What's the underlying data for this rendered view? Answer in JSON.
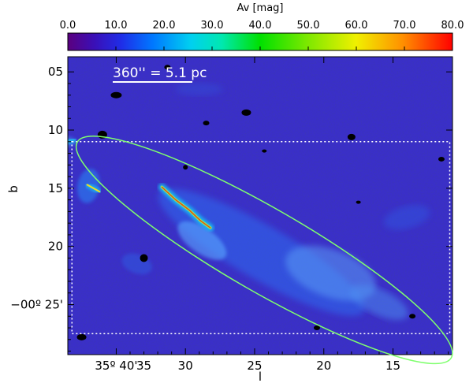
{
  "chart_data": {
    "type": "heatmap",
    "title": "",
    "colorbar": {
      "label": "Av [mag]",
      "ticks": [
        0,
        10,
        20,
        30,
        40,
        50,
        60,
        70,
        80
      ],
      "tick_labels": [
        "0.0",
        "10.0",
        "20.0",
        "30.0",
        "40.0",
        "50.0",
        "60.0",
        "70.0",
        "80.0"
      ],
      "range": [
        0,
        80
      ],
      "colormap": "rainbow"
    },
    "xlabel": "l",
    "ylabel": "b",
    "x_axis": {
      "range": [
        38.5,
        10.7
      ],
      "reversed": true,
      "ticks": [
        {
          "value": 35,
          "label": "35º 40'"
        },
        {
          "value": 30,
          "label": "30"
        },
        {
          "value": 25,
          "label": "25"
        },
        {
          "value": 20,
          "label": "20"
        },
        {
          "value": 15,
          "label": "15"
        }
      ],
      "extra_label": {
        "value": 33,
        "label": "35"
      }
    },
    "y_axis": {
      "range": [
        3.7,
        29.3
      ],
      "reversed": true,
      "ticks": [
        {
          "value": 5,
          "label": "05"
        },
        {
          "value": 10,
          "label": "10"
        },
        {
          "value": 15,
          "label": "15"
        },
        {
          "value": 20,
          "label": "20"
        },
        {
          "value": 25,
          "label": "−00º 25'"
        }
      ]
    },
    "annotations": {
      "scale_bar_text": "360'' = 5.1 pc",
      "dotted_box": {
        "x_from": 38.2,
        "x_to": 10.9,
        "y_from": 11.0,
        "y_to": 27.5
      },
      "ellipse": {
        "center_x": 24.3,
        "center_y": 20.3,
        "semi_major": 15.6,
        "semi_minor": 3.0,
        "angle_deg": 30,
        "color": "#7fff6e"
      }
    },
    "features": [
      {
        "name": "main-filament-ridge",
        "points": [
          [
            31.7,
            14.9
          ],
          [
            30.7,
            16.0
          ],
          [
            29.7,
            16.9
          ],
          [
            28.9,
            17.8
          ],
          [
            28.2,
            18.4
          ]
        ],
        "peak_av": 65
      },
      {
        "name": "west-clump",
        "points": [
          [
            37.1,
            14.7
          ],
          [
            36.2,
            15.3
          ]
        ],
        "peak_av": 40
      },
      {
        "name": "northwest-blob",
        "points": [
          [
            39.0,
            11.2
          ],
          [
            38.0,
            10.8
          ]
        ],
        "peak_av": 25
      }
    ],
    "colors": {
      "background_low": "#3a2fc8",
      "extinction_hole": "#000000",
      "ellipse": "#7fff6e",
      "annotation_white": "#ffffff"
    }
  }
}
